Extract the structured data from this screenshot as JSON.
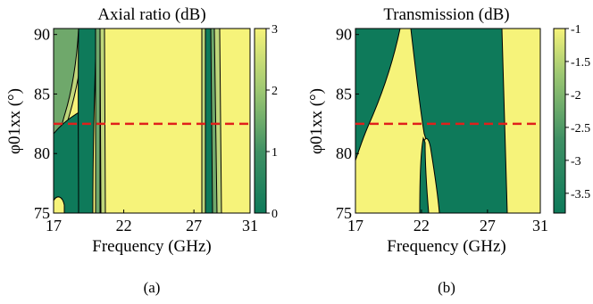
{
  "colors": {
    "yellow": "#F6F37A",
    "green": "#0E7A5A",
    "midgreen": "#6FA86B",
    "lightgreen": "#BFD67B",
    "line": "#000000",
    "dashed": "#E0201B"
  },
  "chart_data": [
    {
      "type": "heatmap",
      "title": "Axial ratio (dB)",
      "xlabel": "Frequency (GHz)",
      "ylabel": "φ01xx (°)",
      "xlim": [
        17,
        31
      ],
      "ylim": [
        75,
        90.5
      ],
      "xticks": [
        "17",
        "22",
        "27",
        "31"
      ],
      "yticks": [
        "75",
        "80",
        "85",
        "90"
      ],
      "colorbar": {
        "min": 0,
        "max": 3,
        "ticks": [
          "0",
          "1",
          "2",
          "3"
        ]
      },
      "marker_line_y": 82.5,
      "caption": "(a)"
    },
    {
      "type": "heatmap",
      "title": "Transmission (dB)",
      "xlabel": "Frequency (GHz)",
      "ylabel": "φ01xx (°)",
      "xlim": [
        17,
        31
      ],
      "ylim": [
        75,
        90.5
      ],
      "xticks": [
        "17",
        "22",
        "27",
        "31"
      ],
      "yticks": [
        "75",
        "80",
        "85",
        "90"
      ],
      "colorbar": {
        "min": -3.8,
        "max": -1,
        "ticks": [
          "-1",
          "-1.5",
          "-2",
          "-2.5",
          "-3",
          "-3.5"
        ]
      },
      "marker_line_y": 82.5,
      "caption": "(b)"
    }
  ]
}
